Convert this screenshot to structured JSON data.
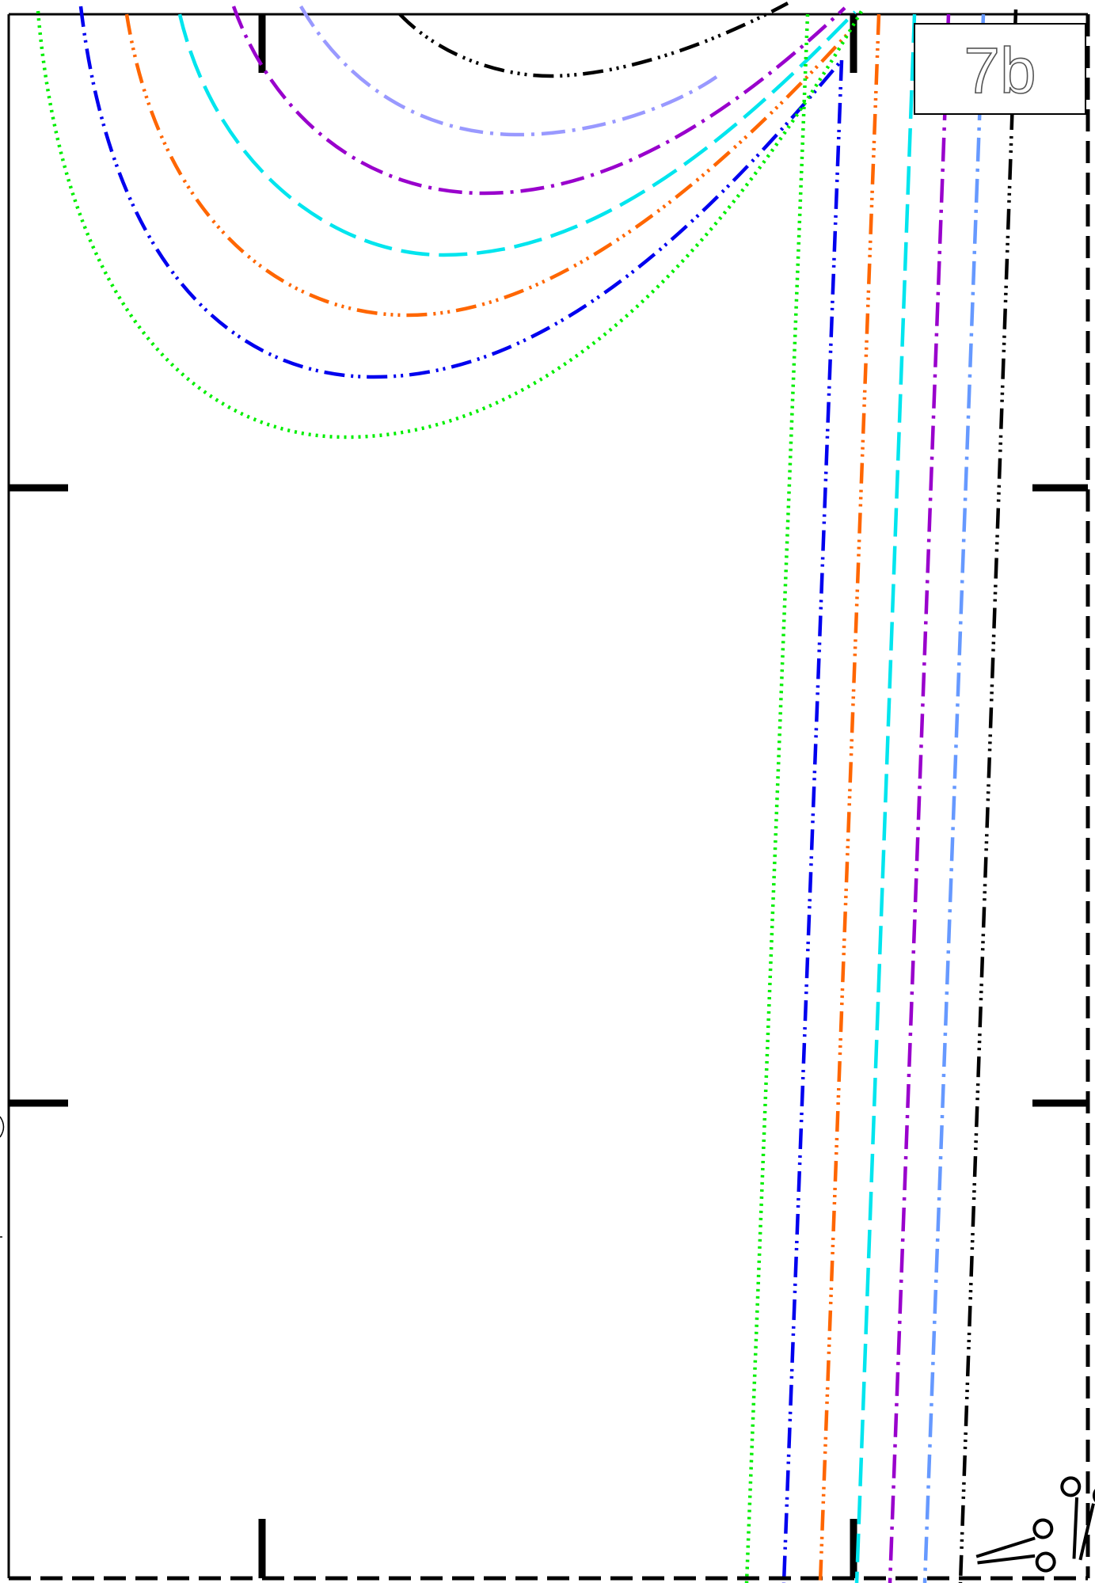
{
  "page": {
    "label": "7b"
  },
  "size_lines": [
    {
      "id": "black",
      "color": "#000000",
      "dash": "dash-dot3"
    },
    {
      "id": "periwinkle",
      "color": "#9999ff",
      "dash": "dash-dot"
    },
    {
      "id": "purple",
      "color": "#9900cc",
      "dash": "dash-dot"
    },
    {
      "id": "cyan",
      "color": "#00e5ee",
      "dash": "long-dash"
    },
    {
      "id": "orange",
      "color": "#ff6600",
      "dash": "dash-dot3"
    },
    {
      "id": "blue",
      "color": "#0000ee",
      "dash": "dash-dot2"
    },
    {
      "id": "green",
      "color": "#00ee00",
      "dash": "dotted"
    },
    {
      "id": "cornflower",
      "color": "#6699ff",
      "dash": "dash-dot"
    }
  ],
  "icons": {
    "cut_mark": "scissors-icon"
  }
}
